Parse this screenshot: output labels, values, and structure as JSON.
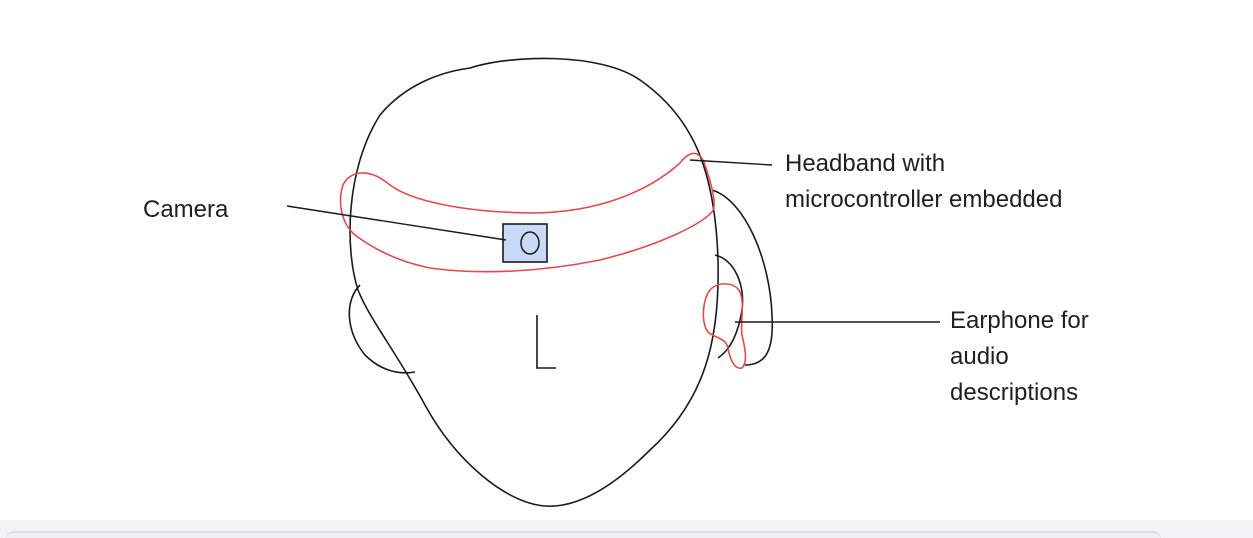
{
  "labels": {
    "camera": "Camera",
    "headband_line1": "Headband with",
    "headband_line2": "microcontroller embedded",
    "earphone_line1": "Earphone for",
    "earphone_line2": "audio",
    "earphone_line3": "descriptions"
  },
  "colors": {
    "outline": "#1a1a1a",
    "headband": "#e5484d",
    "camera_fill": "#c9daf8",
    "text": "#1f1f1f"
  }
}
